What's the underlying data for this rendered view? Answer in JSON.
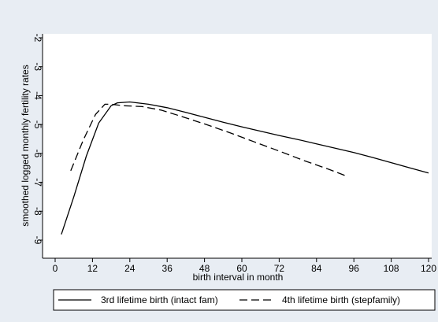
{
  "chart_data": {
    "type": "line",
    "xlabel": "birth interval in month",
    "ylabel": "smoothed logged monthly fertility rates",
    "xlim": [
      0,
      120
    ],
    "ylim": [
      -9,
      -2
    ],
    "xticks": [
      "0",
      "12",
      "24",
      "36",
      "48",
      "60",
      "72",
      "84",
      "96",
      "108",
      "120"
    ],
    "yticks": [
      "-9",
      "-8",
      "-7",
      "-6",
      "-5",
      "-4",
      "-3",
      "-2"
    ],
    "grid": false,
    "legend_position": "bottom",
    "colors": {
      "background": "#e8edf3",
      "plot_area": "#ffffff",
      "line": "#000000"
    },
    "series": [
      {
        "name": "3rd lifetime birth (intact fam)",
        "style": "solid",
        "x": [
          2,
          6,
          10,
          14,
          18,
          20,
          24,
          30,
          36,
          42,
          48,
          54,
          60,
          66,
          72,
          78,
          84,
          90,
          96,
          102,
          108,
          114,
          120
        ],
        "y": [
          -8.8,
          -7.5,
          -6.1,
          -4.95,
          -4.35,
          -4.25,
          -4.22,
          -4.3,
          -4.42,
          -4.58,
          -4.75,
          -4.92,
          -5.08,
          -5.23,
          -5.38,
          -5.52,
          -5.67,
          -5.82,
          -5.97,
          -6.14,
          -6.32,
          -6.5,
          -6.68
        ]
      },
      {
        "name": "4th lifetime birth (stepfamily)",
        "style": "dashed",
        "x": [
          5,
          9,
          13,
          16,
          18,
          22,
          28,
          34,
          40,
          48,
          56,
          64,
          72,
          80,
          88,
          94
        ],
        "y": [
          -6.6,
          -5.55,
          -4.65,
          -4.3,
          -4.3,
          -4.35,
          -4.38,
          -4.5,
          -4.7,
          -4.98,
          -5.28,
          -5.6,
          -5.92,
          -6.25,
          -6.55,
          -6.8
        ]
      }
    ]
  }
}
